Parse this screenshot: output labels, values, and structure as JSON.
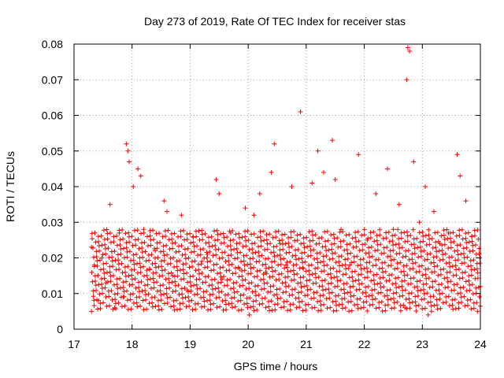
{
  "chart_data": {
    "type": "scatter",
    "title": "Day 273 of 2019, Rate Of TEC Index for receiver stas",
    "xlabel": "GPS time / hours",
    "ylabel": "ROTI / TECUs",
    "xlim": [
      17,
      24
    ],
    "ylim": [
      0,
      0.08
    ],
    "grid": true,
    "marker": "+",
    "color": "#ff0000",
    "x_ticks": [
      "17",
      "18",
      "19",
      "20",
      "21",
      "22",
      "23",
      "24"
    ],
    "x_tick_values": [
      17,
      18,
      19,
      20,
      21,
      22,
      23,
      24
    ],
    "y_ticks": [
      "0",
      "0.01",
      "0.02",
      "0.03",
      "0.04",
      "0.05",
      "0.06",
      "0.07",
      "0.08"
    ],
    "y_tick_values": [
      0,
      0.01,
      0.02,
      0.03,
      0.04,
      0.05,
      0.06,
      0.07,
      0.08
    ],
    "series": [
      {
        "name": "ROTI",
        "points": [
          [
            17.3,
            0.023
          ],
          [
            17.35,
            0.018
          ],
          [
            17.42,
            0.008
          ],
          [
            17.48,
            0.02
          ],
          [
            17.55,
            0.013
          ],
          [
            17.62,
            0.035
          ],
          [
            17.7,
            0.006
          ],
          [
            17.78,
            0.027
          ],
          [
            17.85,
            0.009
          ],
          [
            17.9,
            0.052
          ],
          [
            17.93,
            0.05
          ],
          [
            17.95,
            0.047
          ],
          [
            18.02,
            0.04
          ],
          [
            18.1,
            0.045
          ],
          [
            18.15,
            0.043
          ],
          [
            18.2,
            0.028
          ],
          [
            18.3,
            0.017
          ],
          [
            18.4,
            0.022
          ],
          [
            18.55,
            0.036
          ],
          [
            18.6,
            0.033
          ],
          [
            18.7,
            0.015
          ],
          [
            18.85,
            0.032
          ],
          [
            18.95,
            0.011
          ],
          [
            19.05,
            0.026
          ],
          [
            19.2,
            0.019
          ],
          [
            19.3,
            0.021
          ],
          [
            19.45,
            0.042
          ],
          [
            19.5,
            0.038
          ],
          [
            19.55,
            0.014
          ],
          [
            19.7,
            0.027
          ],
          [
            19.85,
            0.017
          ],
          [
            19.95,
            0.034
          ],
          [
            20.02,
            0.004
          ],
          [
            20.1,
            0.032
          ],
          [
            20.2,
            0.038
          ],
          [
            20.3,
            0.016
          ],
          [
            20.4,
            0.044
          ],
          [
            20.45,
            0.052
          ],
          [
            20.55,
            0.024
          ],
          [
            20.65,
            0.018
          ],
          [
            20.75,
            0.04
          ],
          [
            20.9,
            0.061
          ],
          [
            20.95,
            0.017
          ],
          [
            21.1,
            0.041
          ],
          [
            21.2,
            0.05
          ],
          [
            21.3,
            0.044
          ],
          [
            21.45,
            0.053
          ],
          [
            21.5,
            0.042
          ],
          [
            21.6,
            0.028
          ],
          [
            21.75,
            0.018
          ],
          [
            21.9,
            0.049
          ],
          [
            22.05,
            0.025
          ],
          [
            22.2,
            0.038
          ],
          [
            22.4,
            0.045
          ],
          [
            22.5,
            0.028
          ],
          [
            22.6,
            0.035
          ],
          [
            22.7,
            0.006
          ],
          [
            22.73,
            0.07
          ],
          [
            22.75,
            0.079
          ],
          [
            22.78,
            0.078
          ],
          [
            22.85,
            0.047
          ],
          [
            22.95,
            0.03
          ],
          [
            23.05,
            0.04
          ],
          [
            23.1,
            0.004
          ],
          [
            23.2,
            0.033
          ],
          [
            23.3,
            0.024
          ],
          [
            23.45,
            0.027
          ],
          [
            23.6,
            0.049
          ],
          [
            23.65,
            0.043
          ],
          [
            23.75,
            0.036
          ],
          [
            23.85,
            0.026
          ],
          [
            23.95,
            0.005
          ],
          [
            24.0,
            0.012
          ]
        ]
      }
    ],
    "band": {
      "description": "dense noise band of additional points, sampled evenly over the observed range",
      "x_start": 17.3,
      "x_end": 24.0,
      "y_min": 0.005,
      "y_max": 0.028,
      "point_count": 1400
    }
  }
}
